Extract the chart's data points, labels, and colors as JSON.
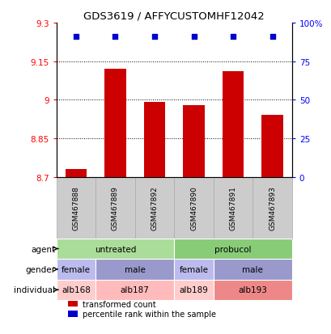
{
  "title": "GDS3619 / AFFYCUSTOMHF12042",
  "samples": [
    "GSM467888",
    "GSM467889",
    "GSM467892",
    "GSM467890",
    "GSM467891",
    "GSM467893"
  ],
  "bar_values": [
    8.73,
    9.12,
    8.99,
    8.98,
    9.11,
    8.94
  ],
  "percentile_values": [
    91,
    91,
    91,
    91,
    91,
    91
  ],
  "bar_color": "#cc0000",
  "dot_color": "#0000cc",
  "ylim_left": [
    8.7,
    9.3
  ],
  "yticks_left": [
    8.7,
    8.85,
    9.0,
    9.15,
    9.3
  ],
  "ytick_labels_left": [
    "8.7",
    "8.85",
    "9",
    "9.15",
    "9.3"
  ],
  "yticks_right_pct": [
    0,
    25,
    50,
    75,
    100
  ],
  "ytick_labels_right": [
    "0",
    "25",
    "50",
    "75",
    "100%"
  ],
  "grid_lines": [
    8.85,
    9.0,
    9.15
  ],
  "agent_groups": [
    {
      "label": "untreated",
      "cols": [
        0,
        1,
        2
      ],
      "color": "#aadd99"
    },
    {
      "label": "probucol",
      "cols": [
        3,
        4,
        5
      ],
      "color": "#88cc77"
    }
  ],
  "gender_groups": [
    {
      "label": "female",
      "cols": [
        0
      ],
      "color": "#bbbbee"
    },
    {
      "label": "male",
      "cols": [
        1,
        2
      ],
      "color": "#9999cc"
    },
    {
      "label": "female",
      "cols": [
        3
      ],
      "color": "#bbbbee"
    },
    {
      "label": "male",
      "cols": [
        4,
        5
      ],
      "color": "#9999cc"
    }
  ],
  "individual_groups": [
    {
      "label": "alb168",
      "cols": [
        0
      ],
      "color": "#ffcccc"
    },
    {
      "label": "alb187",
      "cols": [
        1,
        2
      ],
      "color": "#ffbbbb"
    },
    {
      "label": "alb189",
      "cols": [
        3
      ],
      "color": "#ffcccc"
    },
    {
      "label": "alb193",
      "cols": [
        4,
        5
      ],
      "color": "#ee8888"
    }
  ],
  "sample_box_color": "#cccccc",
  "sample_box_edgecolor": "#aaaaaa",
  "legend_items": [
    {
      "label": "transformed count",
      "color": "#cc0000"
    },
    {
      "label": "percentile rank within the sample",
      "color": "#0000cc"
    }
  ]
}
